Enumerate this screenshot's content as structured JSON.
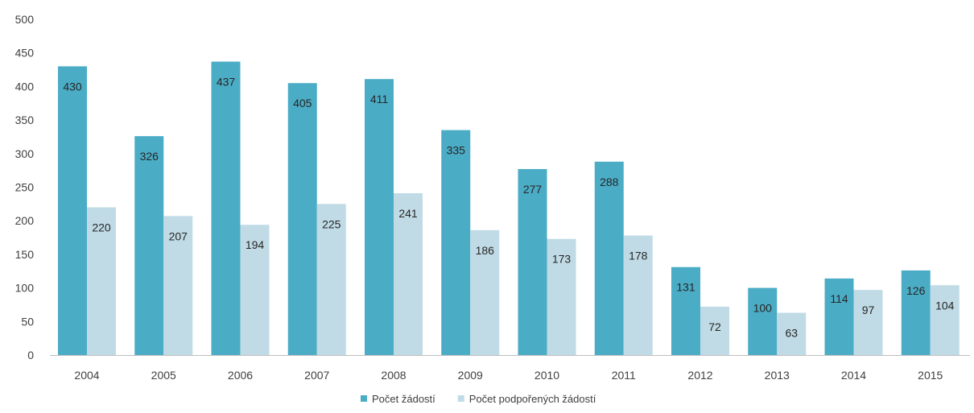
{
  "chart_data": {
    "type": "bar",
    "categories": [
      "2004",
      "2005",
      "2006",
      "2007",
      "2008",
      "2009",
      "2010",
      "2011",
      "2012",
      "2013",
      "2014",
      "2015"
    ],
    "series": [
      {
        "name": "Počet žádostí",
        "color": "#4bacc6",
        "values": [
          430,
          326,
          437,
          405,
          411,
          335,
          277,
          288,
          131,
          100,
          114,
          126
        ]
      },
      {
        "name": "Počet podpořených žádostí",
        "color": "#c0dbe6",
        "values": [
          220,
          207,
          194,
          225,
          241,
          186,
          173,
          178,
          72,
          63,
          97,
          104
        ]
      }
    ],
    "title": "",
    "xlabel": "",
    "ylabel": "",
    "ylim": [
      0,
      500
    ],
    "yticks": [
      0,
      50,
      100,
      150,
      200,
      250,
      300,
      350,
      400,
      450,
      500
    ],
    "grid": false,
    "legend": "bottom-center",
    "data_labels": true
  }
}
